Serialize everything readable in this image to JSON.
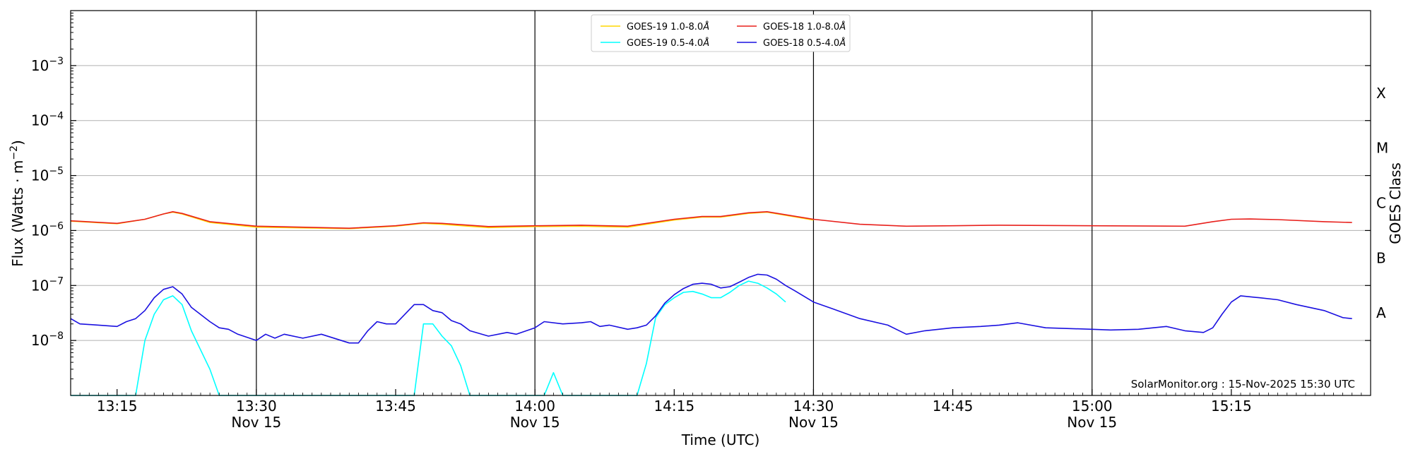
{
  "chart_data": {
    "type": "line",
    "xlabel": "Time (UTC)",
    "ylabel_base": "Flux (Watts · m",
    "ylabel_sup": "−2",
    "ylabel_close": ")",
    "y2label": "GOES Class",
    "y_scale": "log",
    "ylim": [
      1e-09,
      0.01
    ],
    "xlim": [
      "13:10",
      "15:30"
    ],
    "grid": "horizontal at decades, vertical at half hours",
    "legend_position": "top-center",
    "credit": "SolarMonitor.org : 15-Nov-2025 15:30 UTC",
    "y_ticks": [
      {
        "value": 1e-08,
        "base": "10",
        "exp": "−8"
      },
      {
        "value": 1e-07,
        "base": "10",
        "exp": "−7"
      },
      {
        "value": 1e-06,
        "base": "10",
        "exp": "−6"
      },
      {
        "value": 1e-05,
        "base": "10",
        "exp": "−5"
      },
      {
        "value": 0.0001,
        "base": "10",
        "exp": "−4"
      },
      {
        "value": 0.001,
        "base": "10",
        "exp": "−3"
      }
    ],
    "x_ticks": [
      {
        "time": "13:15",
        "label": "13:15",
        "date": ""
      },
      {
        "time": "13:30",
        "label": "13:30",
        "date": "Nov 15"
      },
      {
        "time": "13:45",
        "label": "13:45",
        "date": ""
      },
      {
        "time": "14:00",
        "label": "14:00",
        "date": "Nov 15"
      },
      {
        "time": "14:15",
        "label": "14:15",
        "date": ""
      },
      {
        "time": "14:30",
        "label": "14:30",
        "date": "Nov 15"
      },
      {
        "time": "14:45",
        "label": "14:45",
        "date": ""
      },
      {
        "time": "15:00",
        "label": "15:00",
        "date": "Nov 15"
      },
      {
        "time": "15:15",
        "label": "15:15",
        "date": ""
      }
    ],
    "class_labels": [
      {
        "label": "A",
        "value": 3.16e-08
      },
      {
        "label": "B",
        "value": 3.16e-07
      },
      {
        "label": "C",
        "value": 3.16e-06
      },
      {
        "label": "M",
        "value": 3.16e-05
      },
      {
        "label": "X",
        "value": 0.000316
      }
    ],
    "series": [
      {
        "name": "GOES-19 1.0-8.0",
        "color": "#ffd700",
        "x": [
          "13:10",
          "13:15",
          "13:18",
          "13:20",
          "13:21",
          "13:22",
          "13:25",
          "13:30",
          "13:40",
          "13:45",
          "13:48",
          "13:50",
          "13:55",
          "14:00",
          "14:05",
          "14:10",
          "14:15",
          "14:18",
          "14:20",
          "14:23",
          "14:25",
          "14:30"
        ],
        "y": [
          1.48e-06,
          1.33e-06,
          1.6e-06,
          2e-06,
          2.15e-06,
          2e-06,
          1.4e-06,
          1.15e-06,
          1.08e-06,
          1.2e-06,
          1.35e-06,
          1.3e-06,
          1.13e-06,
          1.18e-06,
          1.2e-06,
          1.15e-06,
          1.55e-06,
          1.75e-06,
          1.75e-06,
          2.05e-06,
          2.15e-06,
          1.55e-06
        ]
      },
      {
        "name": "GOES-18 1.0-8.0",
        "color": "#e8201c",
        "x": [
          "13:10",
          "13:15",
          "13:18",
          "13:20",
          "13:21",
          "13:22",
          "13:25",
          "13:30",
          "13:40",
          "13:45",
          "13:48",
          "13:50",
          "13:55",
          "14:00",
          "14:05",
          "14:10",
          "14:15",
          "14:18",
          "14:20",
          "14:23",
          "14:25",
          "14:30",
          "14:35",
          "14:40",
          "14:45",
          "14:50",
          "15:00",
          "15:10",
          "15:13",
          "15:15",
          "15:17",
          "15:20",
          "15:25",
          "15:28"
        ],
        "y": [
          1.5e-06,
          1.35e-06,
          1.6e-06,
          2e-06,
          2.2e-06,
          2.05e-06,
          1.45e-06,
          1.2e-06,
          1.1e-06,
          1.22e-06,
          1.38e-06,
          1.35e-06,
          1.18e-06,
          1.22e-06,
          1.25e-06,
          1.2e-06,
          1.6e-06,
          1.8e-06,
          1.8e-06,
          2.1e-06,
          2.2e-06,
          1.6e-06,
          1.3e-06,
          1.2e-06,
          1.22e-06,
          1.25e-06,
          1.22e-06,
          1.2e-06,
          1.45e-06,
          1.6e-06,
          1.62e-06,
          1.58e-06,
          1.45e-06,
          1.4e-06
        ]
      },
      {
        "name": "GOES-19 0.5-4.0",
        "color": "#00ffff",
        "x": [
          "13:10",
          "13:17",
          "13:18",
          "13:19",
          "13:20",
          "13:21",
          "13:22",
          "13:23",
          "13:25",
          "13:26",
          "13:30",
          "13:47",
          "13:48",
          "13:49",
          "13:50",
          "13:51",
          "13:52",
          "13:53",
          "14:00",
          "14:01",
          "14:02",
          "14:03",
          "14:10",
          "14:11",
          "14:12",
          "14:13",
          "14:14",
          "14:15",
          "14:16",
          "14:17",
          "14:18",
          "14:19",
          "14:20",
          "14:21",
          "14:22",
          "14:23",
          "14:24",
          "14:25",
          "14:26",
          "14:27"
        ],
        "y": [
          1e-09,
          1e-09,
          1e-08,
          3e-08,
          5.5e-08,
          6.5e-08,
          4.5e-08,
          1.5e-08,
          3e-09,
          1e-09,
          1e-09,
          1e-09,
          2e-08,
          2e-08,
          1.2e-08,
          8e-09,
          3.5e-09,
          1e-09,
          1e-09,
          1e-09,
          2.6e-09,
          1e-09,
          1e-09,
          1e-09,
          3.8e-09,
          2.6e-08,
          4.5e-08,
          6e-08,
          7.5e-08,
          7.8e-08,
          7e-08,
          6e-08,
          6e-08,
          7.5e-08,
          1e-07,
          1.2e-07,
          1.1e-07,
          9e-08,
          7e-08,
          5e-08
        ]
      },
      {
        "name": "GOES-18 0.5-4.0",
        "color": "#1a10e0",
        "x": [
          "13:10",
          "13:11",
          "13:13",
          "13:15",
          "13:16",
          "13:17",
          "13:18",
          "13:19",
          "13:20",
          "13:21",
          "13:22",
          "13:23",
          "13:25",
          "13:26",
          "13:27",
          "13:28",
          "13:30",
          "13:31",
          "13:32",
          "13:33",
          "13:35",
          "13:37",
          "13:40",
          "13:41",
          "13:42",
          "13:43",
          "13:44",
          "13:45",
          "13:47",
          "13:48",
          "13:49",
          "13:50",
          "13:51",
          "13:52",
          "13:53",
          "13:55",
          "13:57",
          "13:58",
          "14:00",
          "14:01",
          "14:03",
          "14:05",
          "14:06",
          "14:07",
          "14:08",
          "14:10",
          "14:11",
          "14:12",
          "14:13",
          "14:14",
          "14:15",
          "14:16",
          "14:17",
          "14:18",
          "14:19",
          "14:20",
          "14:21",
          "14:22",
          "14:23",
          "14:24",
          "14:25",
          "14:26",
          "14:27",
          "14:28",
          "14:30",
          "14:32",
          "14:35",
          "14:38",
          "14:40",
          "14:42",
          "14:45",
          "14:48",
          "14:50",
          "14:52",
          "14:55",
          "15:00",
          "15:02",
          "15:05",
          "15:08",
          "15:10",
          "15:12",
          "15:13",
          "15:14",
          "15:15",
          "15:16",
          "15:18",
          "15:20",
          "15:22",
          "15:25",
          "15:27",
          "15:28"
        ],
        "y": [
          2.5e-08,
          2e-08,
          1.9e-08,
          1.8e-08,
          2.2e-08,
          2.5e-08,
          3.5e-08,
          6e-08,
          8.5e-08,
          9.5e-08,
          7e-08,
          4e-08,
          2.2e-08,
          1.7e-08,
          1.6e-08,
          1.3e-08,
          1e-08,
          1.3e-08,
          1.1e-08,
          1.3e-08,
          1.1e-08,
          1.3e-08,
          9e-09,
          9e-09,
          1.5e-08,
          2.2e-08,
          2e-08,
          2e-08,
          4.5e-08,
          4.5e-08,
          3.5e-08,
          3.2e-08,
          2.3e-08,
          2e-08,
          1.5e-08,
          1.2e-08,
          1.4e-08,
          1.3e-08,
          1.7e-08,
          2.2e-08,
          2e-08,
          2.1e-08,
          2.2e-08,
          1.8e-08,
          1.9e-08,
          1.6e-08,
          1.7e-08,
          1.9e-08,
          2.8e-08,
          4.8e-08,
          6.8e-08,
          8.8e-08,
          1.05e-07,
          1.1e-07,
          1.05e-07,
          9e-08,
          9.5e-08,
          1.15e-07,
          1.4e-07,
          1.6e-07,
          1.55e-07,
          1.3e-07,
          1e-07,
          8e-08,
          5e-08,
          3.8e-08,
          2.5e-08,
          1.9e-08,
          1.3e-08,
          1.5e-08,
          1.7e-08,
          1.8e-08,
          1.9e-08,
          2.1e-08,
          1.7e-08,
          1.6e-08,
          1.55e-08,
          1.6e-08,
          1.8e-08,
          1.5e-08,
          1.4e-08,
          1.7e-08,
          3e-08,
          5e-08,
          6.5e-08,
          6e-08,
          5.5e-08,
          4.5e-08,
          3.5e-08,
          2.6e-08,
          2.5e-08
        ]
      }
    ]
  },
  "legend": [
    {
      "name": "GOES-19 1.0-8.0",
      "unit": "Å",
      "color": "#ffd700"
    },
    {
      "name": "GOES-19 0.5-4.0",
      "unit": "Å",
      "color": "#00ffff"
    },
    {
      "name": "GOES-18 1.0-8.0",
      "unit": "Å",
      "color": "#e8201c"
    },
    {
      "name": "GOES-18 0.5-4.0",
      "unit": "Å",
      "color": "#1a10e0"
    }
  ]
}
